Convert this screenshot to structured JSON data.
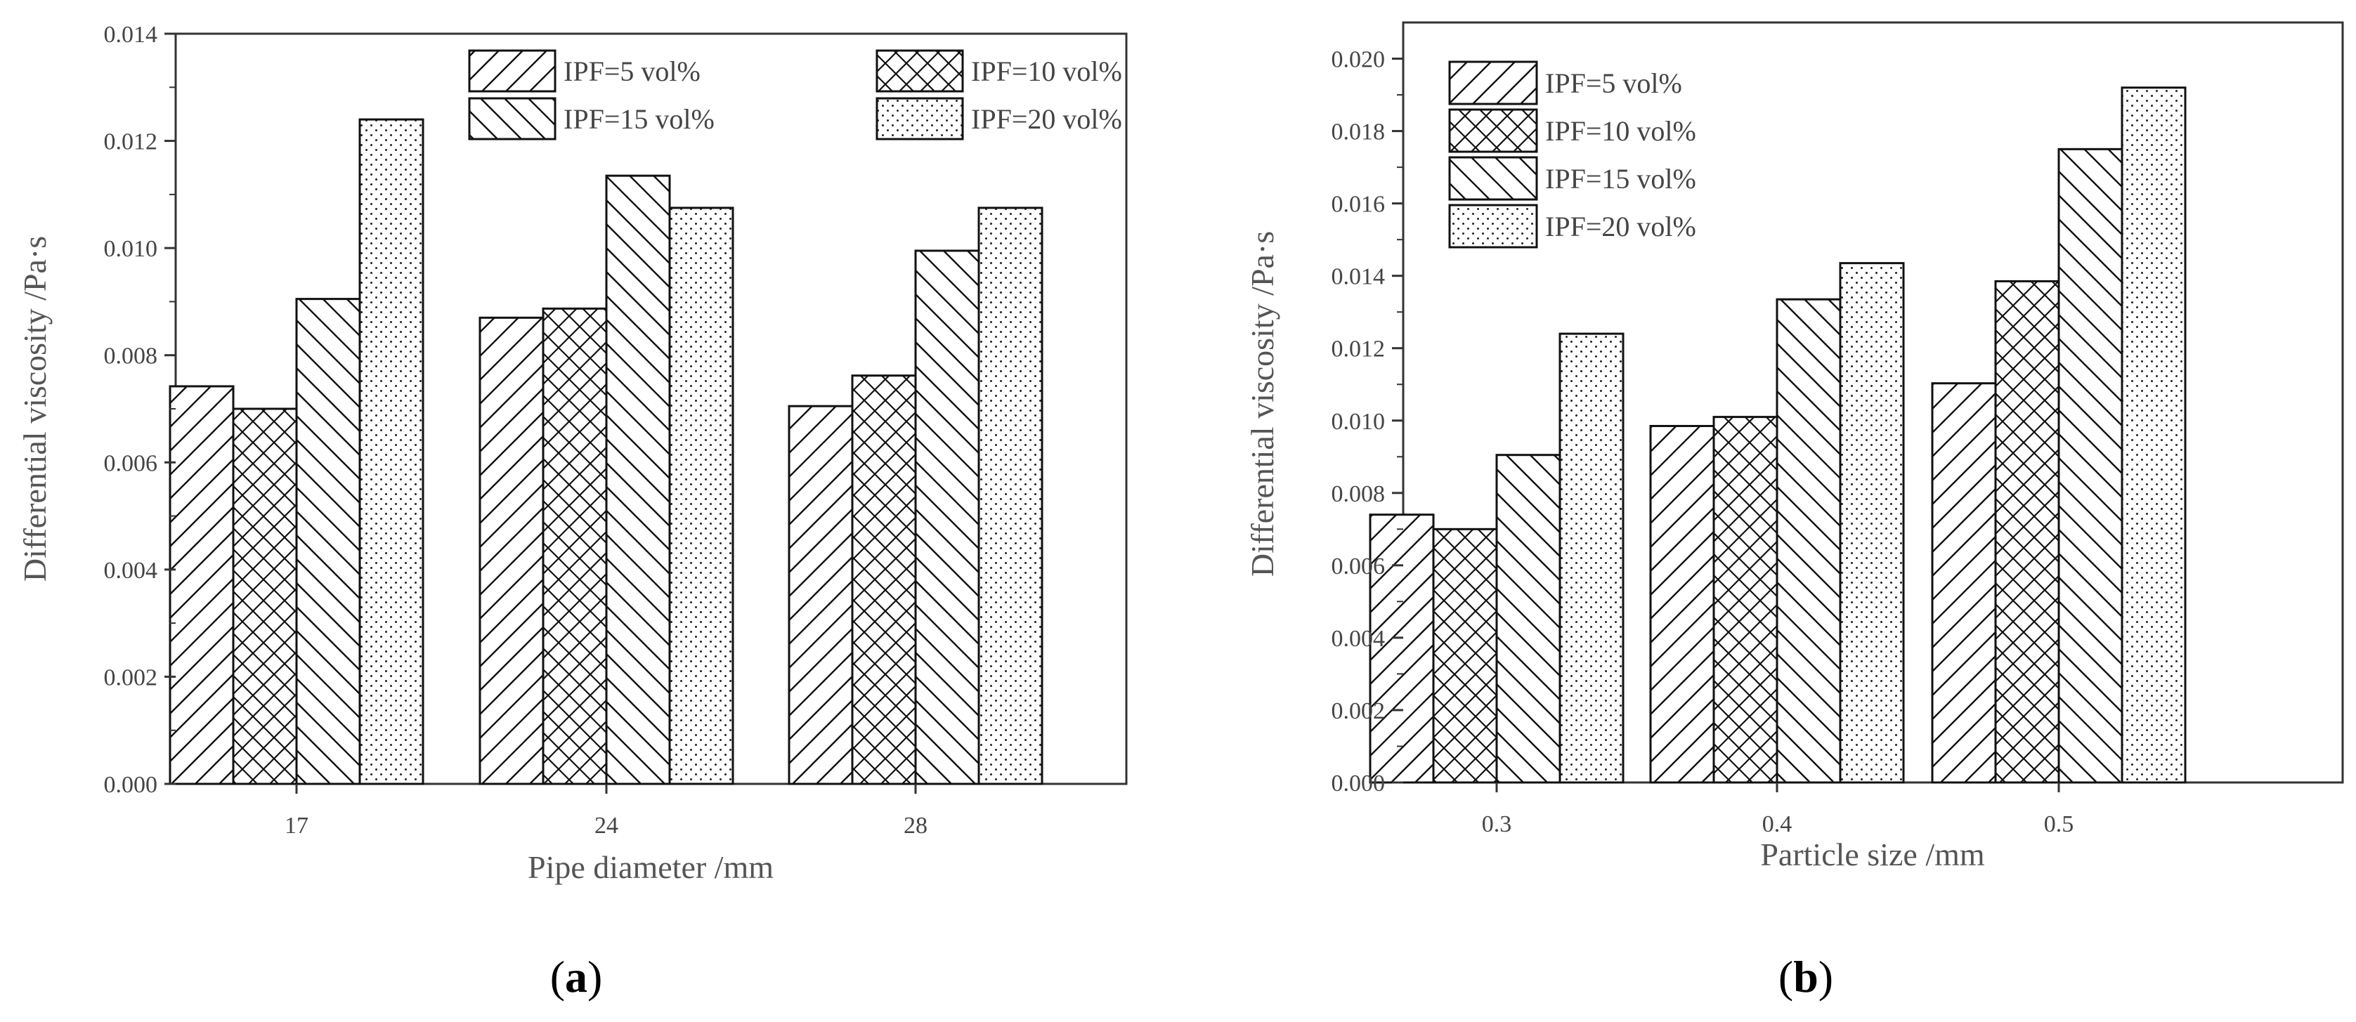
{
  "chart_data": [
    {
      "type": "bar",
      "panel_label": "a",
      "caption": "(a)",
      "xlabel": "Pipe diameter /mm",
      "ylabel": "Differential viscosity /Pa·s",
      "categories": [
        "17",
        "24",
        "28"
      ],
      "ylim": [
        0,
        0.014
      ],
      "yticks": [
        "0.000",
        "0.002",
        "0.004",
        "0.006",
        "0.008",
        "0.010",
        "0.012",
        "0.014"
      ],
      "legend_position": "top-right, 2 columns",
      "series": [
        {
          "name": "IPF=5 vol%",
          "pattern": "diag-up",
          "values": [
            0.00742,
            0.0087,
            0.00705
          ]
        },
        {
          "name": "IPF=10 vol%",
          "pattern": "crosshatch",
          "values": [
            0.007,
            0.00887,
            0.00762
          ]
        },
        {
          "name": "IPF=15 vol%",
          "pattern": "diag-down",
          "values": [
            0.00905,
            0.01135,
            0.00995
          ]
        },
        {
          "name": "IPF=20 vol%",
          "pattern": "dots",
          "values": [
            0.0124,
            0.01075,
            0.01075
          ]
        }
      ]
    },
    {
      "type": "bar",
      "panel_label": "b",
      "caption": "(b)",
      "xlabel": "Particle size /mm",
      "ylabel": "Differential viscosity /Pa·s",
      "categories": [
        "0.3",
        "0.4",
        "0.5"
      ],
      "ylim": [
        0,
        0.021
      ],
      "yticks": [
        "0.000",
        "0.002",
        "0.004",
        "0.006",
        "0.008",
        "0.010",
        "0.012",
        "0.014",
        "0.016",
        "0.018",
        "0.020"
      ],
      "legend_position": "top-left, 1 column",
      "series": [
        {
          "name": "IPF=5 vol%",
          "pattern": "diag-up",
          "values": [
            0.0074,
            0.00985,
            0.01103
          ]
        },
        {
          "name": "IPF=10 vol%",
          "pattern": "crosshatch",
          "values": [
            0.007,
            0.0101,
            0.01385
          ]
        },
        {
          "name": "IPF=15 vol%",
          "pattern": "diag-down",
          "values": [
            0.00905,
            0.01335,
            0.0175
          ]
        },
        {
          "name": "IPF=20 vol%",
          "pattern": "dots",
          "values": [
            0.0124,
            0.01435,
            0.0192
          ]
        }
      ]
    }
  ]
}
